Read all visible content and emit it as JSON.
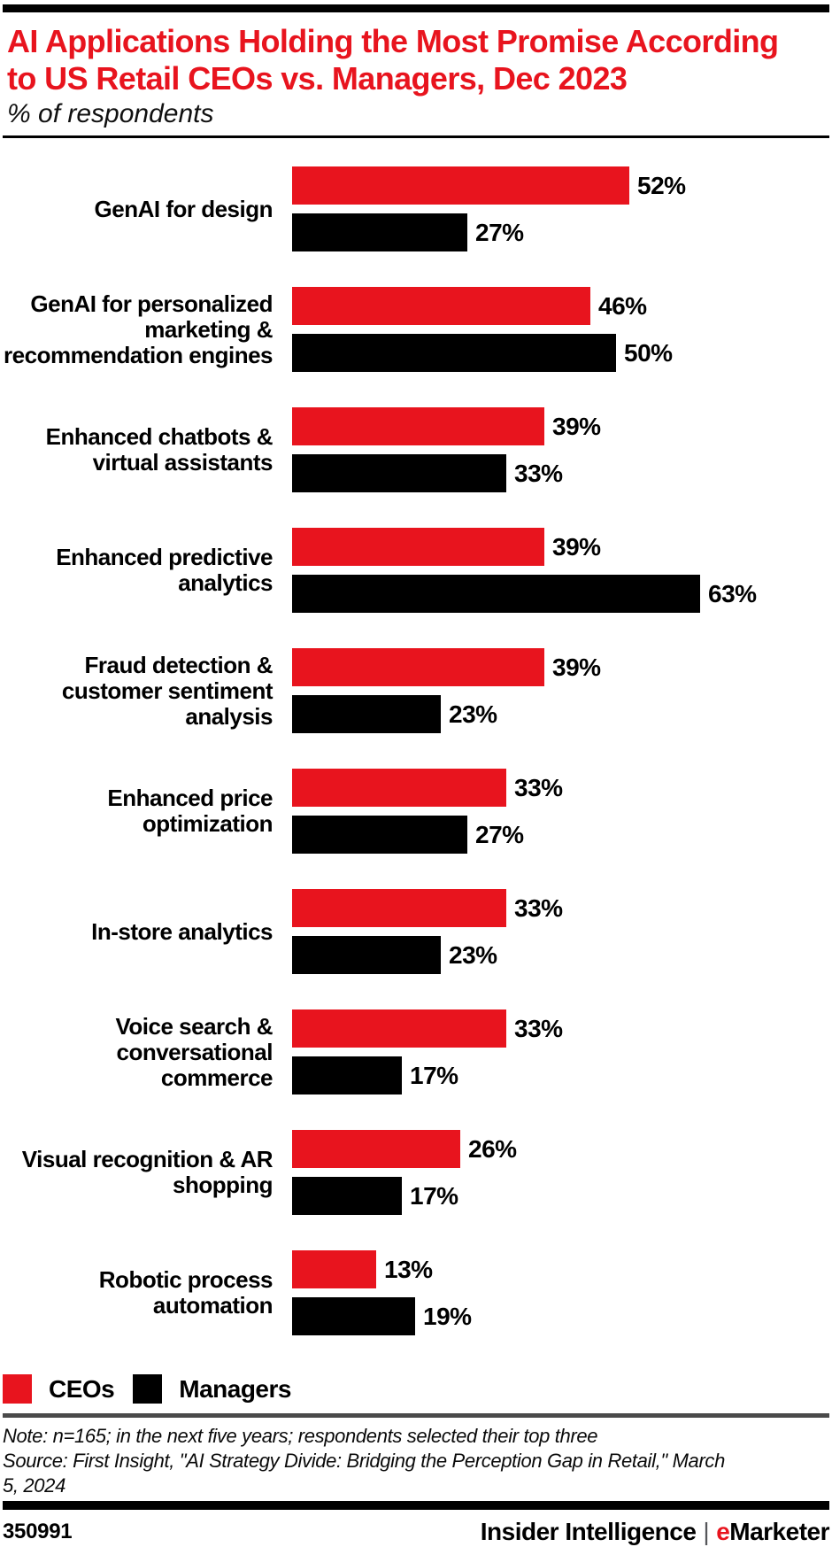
{
  "header": {
    "title": "AI Applications Holding the Most Promise According\nto US Retail CEOs vs. Managers, Dec 2023",
    "subtitle": "% of respondents"
  },
  "chart_data": {
    "type": "bar",
    "orientation": "horizontal",
    "title": "AI Applications Holding the Most Promise According to US Retail CEOs vs. Managers, Dec 2023",
    "subtitle": "% of respondents",
    "value_suffix": "%",
    "xlim": [
      0,
      70
    ],
    "grid": false,
    "legend_position": "bottom",
    "categories": [
      "GenAI for design",
      "GenAI for personalized\nmarketing &\nrecommendation engines",
      "Enhanced chatbots &\nvirtual assistants",
      "Enhanced predictive\nanalytics",
      "Fraud detection &\ncustomer sentiment\nanalysis",
      "Enhanced price\noptimization",
      "In-store analytics",
      "Voice search &\nconversational\ncommerce",
      "Visual recognition & AR\nshopping",
      "Robotic process\nautomation"
    ],
    "series": [
      {
        "name": "CEOs",
        "color": "#e8141e",
        "values": [
          52,
          46,
          39,
          39,
          39,
          33,
          33,
          33,
          26,
          13
        ]
      },
      {
        "name": "Managers",
        "color": "#000000",
        "values": [
          27,
          50,
          33,
          63,
          23,
          27,
          23,
          17,
          17,
          19
        ]
      }
    ]
  },
  "legend": {
    "items": [
      {
        "label": "CEOs",
        "color": "#e8141e"
      },
      {
        "label": "Managers",
        "color": "#000000"
      }
    ]
  },
  "notes": {
    "note": "Note: n=165; in the next five years; respondents selected their top three",
    "source": "Source: First Insight, \"AI Strategy Divide: Bridging the Perception Gap in Retail,\" March\n5, 2024"
  },
  "footer": {
    "chart_id": "350991",
    "brand_left": "Insider Intelligence",
    "separator": "|",
    "brand_e": "e",
    "brand_rest": "Marketer"
  },
  "colors": {
    "accent_red": "#e8141e",
    "bar_black": "#000000",
    "divider_gray": "#4a4a4a"
  }
}
